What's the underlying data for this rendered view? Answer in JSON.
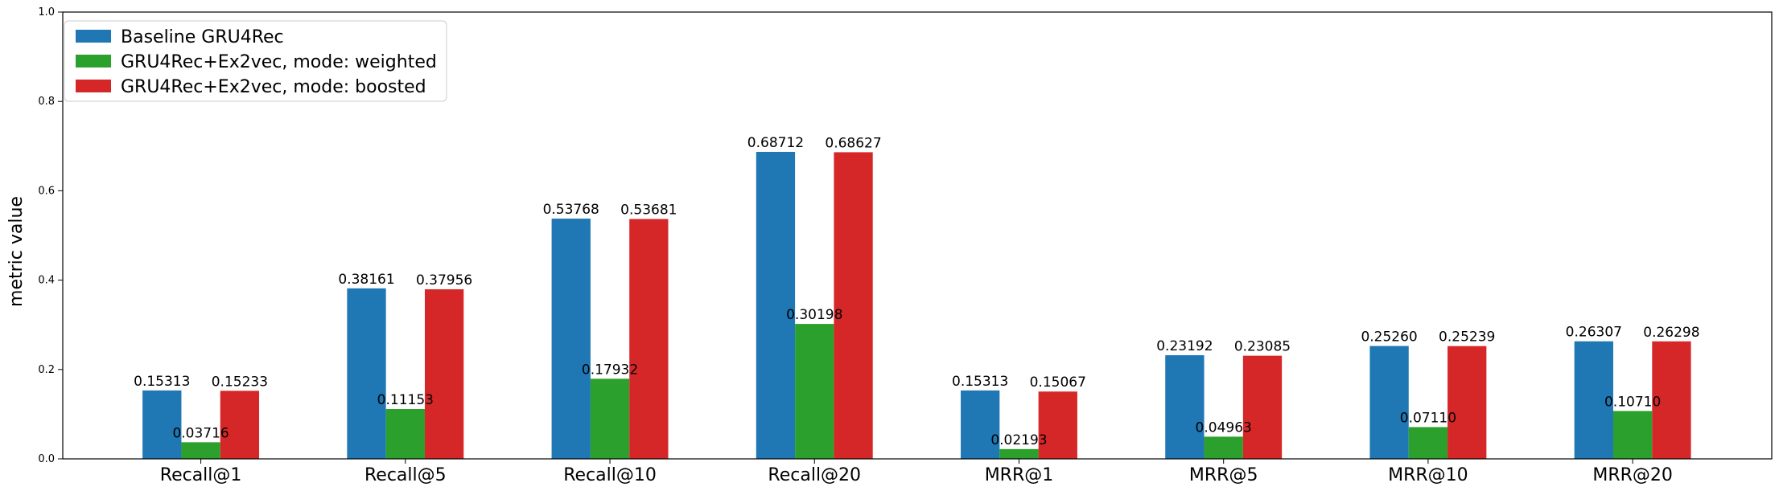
{
  "chart_data": {
    "type": "bar",
    "categories": [
      "Recall@1",
      "Recall@5",
      "Recall@10",
      "Recall@20",
      "MRR@1",
      "MRR@5",
      "MRR@10",
      "MRR@20"
    ],
    "series": [
      {
        "name": "Baseline GRU4Rec",
        "color": "#1f77b4",
        "values": [
          0.15313,
          0.38161,
          0.53768,
          0.68712,
          0.15313,
          0.23192,
          0.2526,
          0.26307
        ],
        "labels": [
          "0.15313",
          "0.38161",
          "0.53768",
          "0.68712",
          "0.15313",
          "0.23192",
          "0.25260",
          "0.26307"
        ]
      },
      {
        "name": "GRU4Rec+Ex2vec, mode: weighted",
        "color": "#2ca02c",
        "values": [
          0.03716,
          0.11153,
          0.17932,
          0.30198,
          0.02193,
          0.04963,
          0.0711,
          0.1071
        ],
        "labels": [
          "0.03716",
          "0.11153",
          "0.17932",
          "0.30198",
          "0.02193",
          "0.04963",
          "0.07110",
          "0.10710"
        ]
      },
      {
        "name": "GRU4Rec+Ex2vec, mode: boosted",
        "color": "#d62728",
        "values": [
          0.15233,
          0.37956,
          0.53681,
          0.68627,
          0.15067,
          0.23085,
          0.25239,
          0.26298
        ],
        "labels": [
          "0.15233",
          "0.37956",
          "0.53681",
          "0.68627",
          "0.15067",
          "0.23085",
          "0.25239",
          "0.26298"
        ]
      }
    ],
    "ylabel": "metric value",
    "ylim": [
      0,
      1.0
    ],
    "yticks": [
      "0.0",
      "0.2",
      "0.4",
      "0.6",
      "0.8",
      "1.0"
    ],
    "legend_position": "top-left",
    "grid": false
  }
}
